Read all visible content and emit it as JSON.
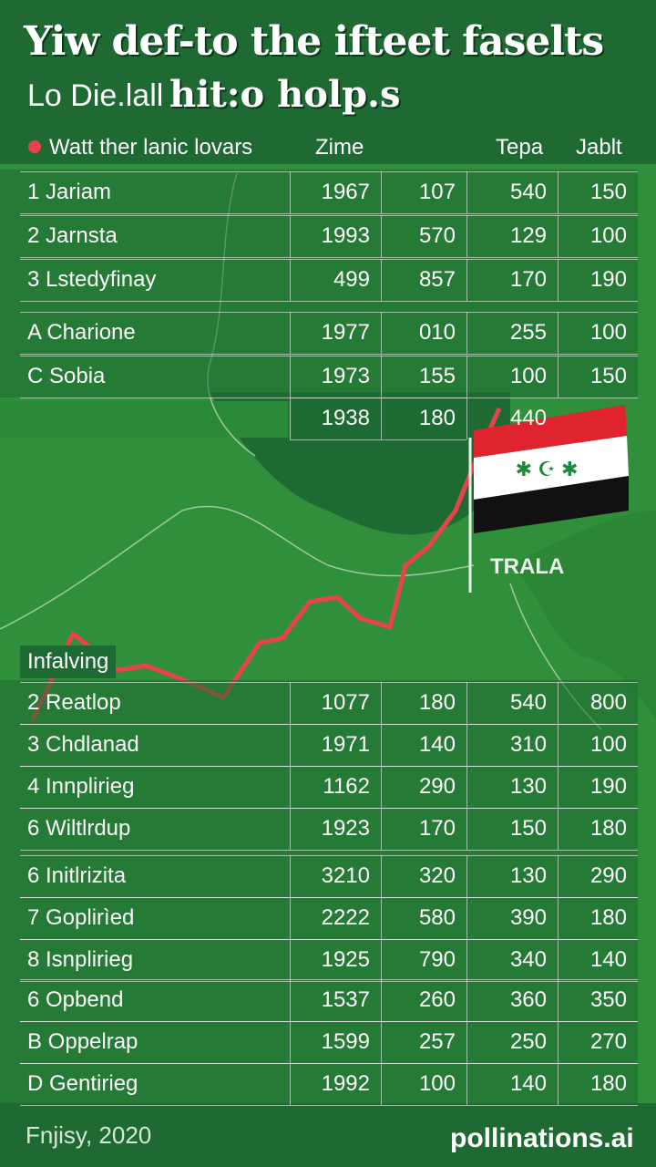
{
  "header": {
    "title": "Yiw def-to the ifteet faselts",
    "subtitle": [
      "Lo Die.lall",
      "hit:o holp.s"
    ]
  },
  "table_header": {
    "legend": "Watt ther lanic lovars",
    "columns": [
      "Zime",
      "Tepa",
      "Jablt"
    ]
  },
  "table": {
    "rows": [
      {
        "label": "1 Jariam",
        "values": [
          "1967",
          "107",
          "540",
          "150"
        ]
      },
      {
        "label": "2 Jarnsta",
        "values": [
          "1993",
          "570",
          "129",
          "100"
        ]
      },
      {
        "label": "3 Lstedyfinay",
        "values": [
          "499",
          "857",
          "170",
          "190"
        ]
      },
      {
        "label": "A Charione",
        "values": [
          "1977",
          "010",
          "255",
          "100"
        ]
      },
      {
        "label": "C Sobia",
        "values": [
          "1973",
          "155",
          "100",
          "150"
        ]
      },
      {
        "values": [
          "1938",
          "180",
          "440"
        ]
      }
    ]
  },
  "map_label": "TRALA",
  "section": "Infalving",
  "table2": {
    "rows": [
      {
        "label": "2 Reatlop",
        "values": [
          "1077",
          "180",
          "540",
          "800"
        ]
      },
      {
        "label": "3 Chdlanad",
        "values": [
          "1971",
          "140",
          "310",
          "100"
        ]
      },
      {
        "label": "4 Innplirieg",
        "values": [
          "1162",
          "290",
          "130",
          "190"
        ]
      },
      {
        "label": "6 Wiltlrdup",
        "values": [
          "1923",
          "170",
          "150",
          "180"
        ]
      },
      {
        "label": "6 Initlrizita",
        "values": [
          "3210",
          "320",
          "130",
          "290"
        ]
      },
      {
        "label": "7 Goplirìed",
        "values": [
          "2222",
          "580",
          "390",
          "180"
        ]
      },
      {
        "label": "8 Isnplirieg",
        "values": [
          "1925",
          "790",
          "340",
          "140"
        ]
      },
      {
        "label": "6 Opbend",
        "values": [
          "1537",
          "260",
          "360",
          "350"
        ]
      },
      {
        "label": "B Oppelrap",
        "values": [
          "1599",
          "257",
          "250",
          "270"
        ]
      },
      {
        "label": "D Gentirieg",
        "values": [
          "1992",
          "100",
          "140",
          "180"
        ]
      }
    ]
  },
  "footer": {
    "left": "Fnjisy, 2020",
    "right": "pollinations.ai"
  }
}
